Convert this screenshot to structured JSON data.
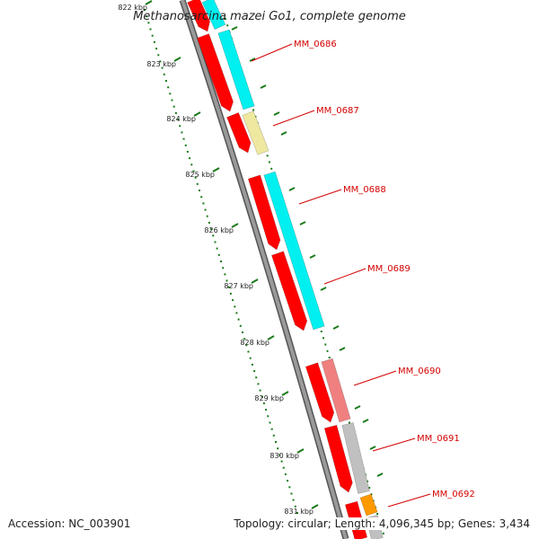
{
  "title": "Methanosarcina mazei Go1, complete genome",
  "scale": {
    "ticks": [
      "822 kbp",
      "823 kbp",
      "824 kbp",
      "825 kbp",
      "826 kbp",
      "827 kbp",
      "828 kbp",
      "829 kbp",
      "830 kbp",
      "831 kbp"
    ]
  },
  "colors": {
    "forward_cds": "#ff0000",
    "backbone": "#888888",
    "scale_dots": "#1a7a1a",
    "cog_cyan": "#00f0f0",
    "cog_khaki": "#eee8a0",
    "cog_pink": "#f08080",
    "cog_gray": "#c0c0c0",
    "cog_orange": "#ff9900",
    "label": "#d40000"
  },
  "genes": [
    {
      "label": "MM_0686"
    },
    {
      "label": "MM_0687"
    },
    {
      "label": "MM_0688"
    },
    {
      "label": "MM_0689"
    },
    {
      "label": "MM_0690"
    },
    {
      "label": "MM_0691"
    },
    {
      "label": "MM_0692"
    }
  ],
  "footer": {
    "accession": "Accession: NC_003901",
    "topology": "Topology: circular; Length: 4,096,345 bp; Genes: 3,434"
  }
}
